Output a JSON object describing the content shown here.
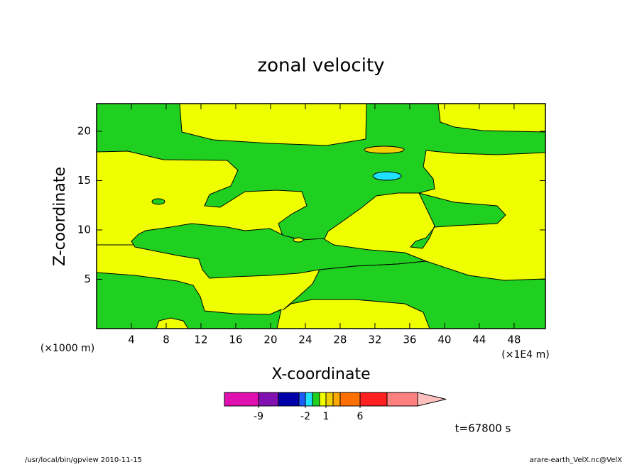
{
  "chart_data": {
    "type": "contour",
    "title": "zonal velocity",
    "xlabel": "X-coordinate",
    "ylabel": "Z-coordinate",
    "xunit": "(×1000 m)",
    "xunit2": "(×1E4 m)",
    "time_label": "t=67800 s",
    "footer_left": "/usr/local/bin/gpview  2010-11-15",
    "footer_right": "arare-earth_VelX.nc@VelX",
    "xlim": [
      0,
      51.6
    ],
    "xticks": [
      4,
      8,
      12,
      16,
      20,
      24,
      28,
      32,
      36,
      40,
      44,
      48
    ],
    "ylim": [
      0,
      22.8
    ],
    "yticks": [
      5,
      10,
      15,
      20
    ],
    "levels": [
      -12,
      -9,
      -6,
      -3,
      -2,
      -1,
      0,
      1,
      2,
      3,
      6,
      9,
      12
    ],
    "colors": [
      "#e010b0",
      "#8010b0",
      "#0000a8",
      "#1c5cff",
      "#20e0ff",
      "#20d020",
      "#f0ff00",
      "#f0d000",
      "#ffa800",
      "#ff7000",
      "#ff2020",
      "#ff8080",
      "#ffc0c0"
    ],
    "colorbar_ticks": [
      -9,
      -2,
      1,
      6
    ]
  }
}
